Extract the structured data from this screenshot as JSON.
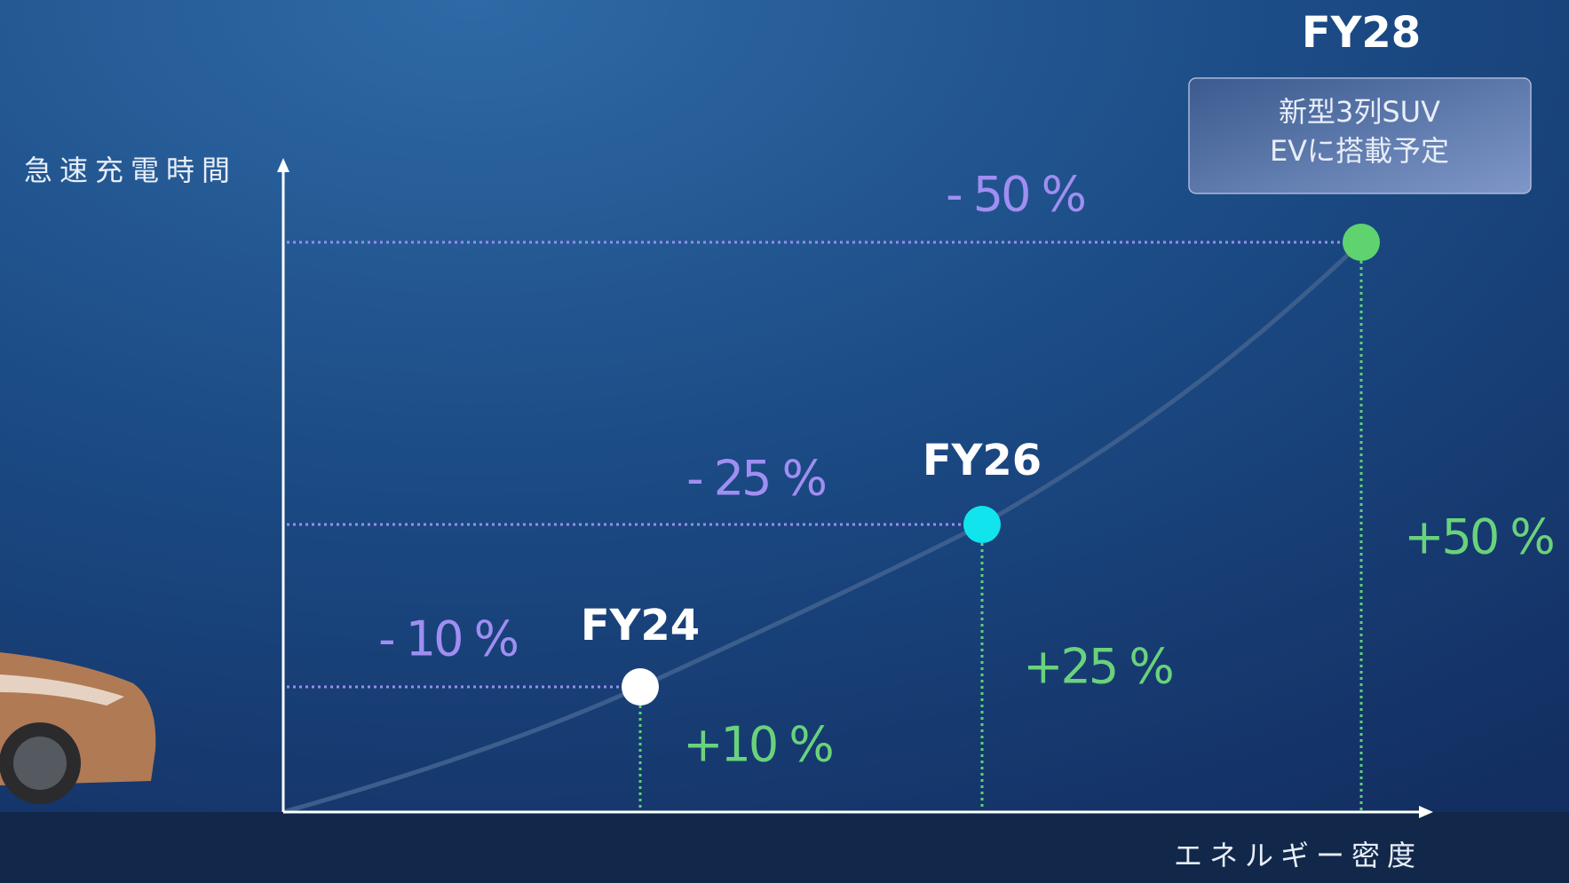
{
  "axes": {
    "y_label": "急速充電時間",
    "x_label": "エネルギー密度"
  },
  "points": [
    {
      "label": "FY24",
      "time_label": "- 10 %",
      "density_label": "+10 %"
    },
    {
      "label": "FY26",
      "time_label": "- 25 %",
      "density_label": "+25 %"
    },
    {
      "label": "FY28",
      "time_label": "- 50 %",
      "density_label": "+50 %"
    }
  ],
  "callout": {
    "lines": [
      "新型3列SUV",
      "EVに搭載予定"
    ]
  }
}
